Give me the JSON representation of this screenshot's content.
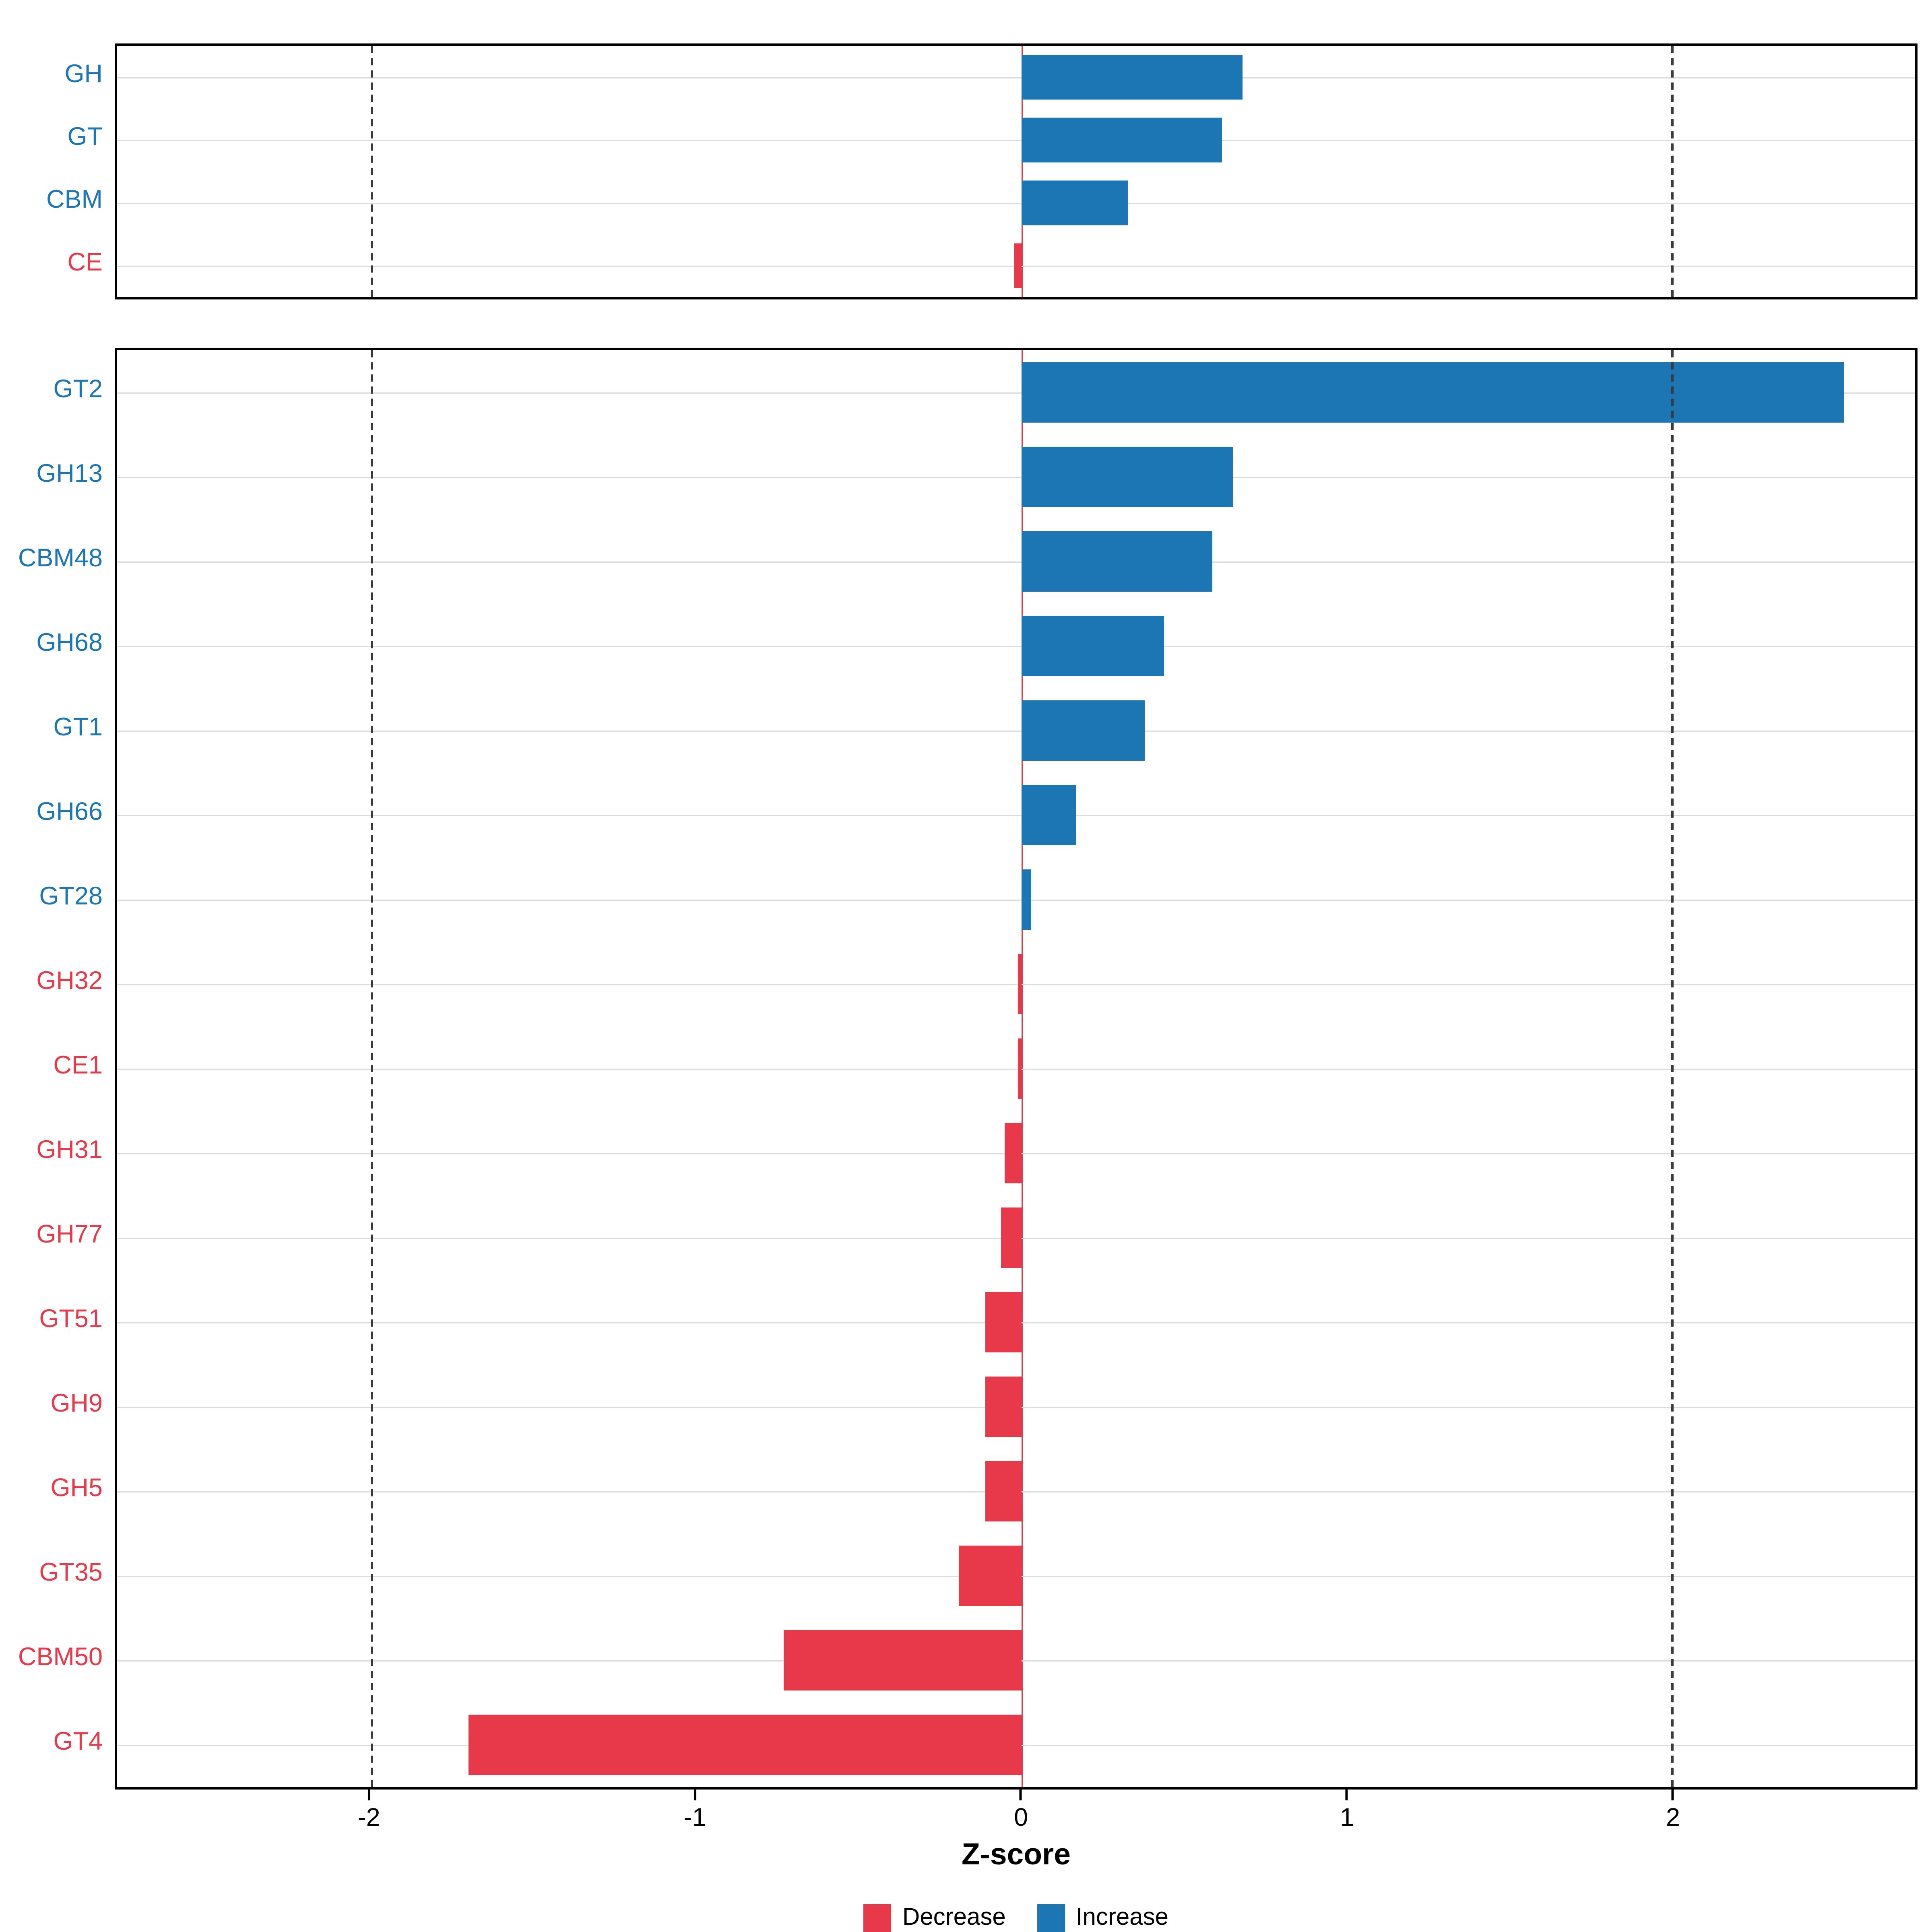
{
  "colors": {
    "increase": "#1D76B4",
    "decrease": "#E8394A",
    "zero_line": "#E8394A",
    "gridline": "#DCDCDC",
    "ref_line": "#3A3A3A",
    "panel_border": "#000000",
    "axis_text": "#000000"
  },
  "x_axis": {
    "label": "Z-score",
    "ticks": [
      -2,
      -1,
      0,
      1,
      2
    ],
    "tick_labels": [
      "-2",
      "-1",
      "0",
      "1",
      "2"
    ]
  },
  "legend": {
    "items": [
      {
        "label": "Decrease",
        "key": "decrease"
      },
      {
        "label": "Increase",
        "key": "increase"
      }
    ]
  },
  "chart_data": [
    {
      "type": "bar",
      "panel": "cazyme-class-summary",
      "orientation": "horizontal",
      "categories": [
        "GH",
        "GT",
        "CBM",
        "CE"
      ],
      "values": [
        0.68,
        0.62,
        0.33,
        -0.02
      ],
      "directions": [
        "increase",
        "increase",
        "increase",
        "decrease"
      ],
      "xlim": [
        -2.78,
        2.75
      ],
      "grid": true,
      "dashed_reference_lines": [
        -2,
        2
      ],
      "zero_line": 0
    },
    {
      "type": "bar",
      "panel": "cazyme-families",
      "orientation": "horizontal",
      "categories": [
        "GT2",
        "GH13",
        "CBM48",
        "GH68",
        "GT1",
        "GH66",
        "GT28",
        "GH32",
        "CE1",
        "GH31",
        "GH77",
        "GT51",
        "GH9",
        "GH5",
        "GT35",
        "CBM50",
        "GT4"
      ],
      "values": [
        2.53,
        0.65,
        0.59,
        0.44,
        0.38,
        0.17,
        0.03,
        -0.01,
        -0.01,
        -0.05,
        -0.06,
        -0.11,
        -0.11,
        -0.11,
        -0.19,
        -0.73,
        -1.7
      ],
      "directions": [
        "increase",
        "increase",
        "increase",
        "increase",
        "increase",
        "increase",
        "increase",
        "decrease",
        "decrease",
        "decrease",
        "decrease",
        "decrease",
        "decrease",
        "decrease",
        "decrease",
        "decrease",
        "decrease"
      ],
      "xlim": [
        -2.78,
        2.75
      ],
      "xlabel": "Z-score",
      "grid": true,
      "dashed_reference_lines": [
        -2,
        2
      ],
      "zero_line": 0
    }
  ]
}
